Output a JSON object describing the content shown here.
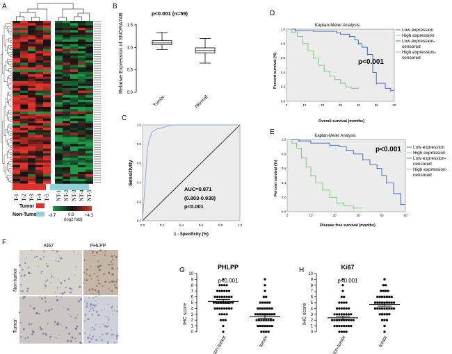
{
  "panels": {
    "A": "A",
    "B": "B",
    "C": "C",
    "D": "D",
    "E": "E",
    "F": "F",
    "G": "G",
    "H": "H"
  },
  "colors": {
    "red": "#e0322b",
    "green": "#1f9a48",
    "dark": "#111111",
    "cyan": "#8fd3d8",
    "blue": "#3a5fc0",
    "lightgreen": "#7cc47a",
    "km_bg": "#ececec",
    "roc_line": "#8ba9d6"
  },
  "heatmap": {
    "sample_labels": [
      "T-1",
      "T-2",
      "T-3",
      "T-4",
      "T-5",
      "NT-1",
      "NT-2",
      "NT-3",
      "NT-4",
      "NT-5"
    ],
    "legend_tumor": "Tumor",
    "legend_nontumor": "Non-Tumor",
    "scale_min": "-3.7",
    "scale_mid": "0.0",
    "scale_max": "+4.3",
    "scale_label": "(log2 fold)"
  },
  "box": {
    "title": "p<0.001 (n=59)",
    "ylabel": "Relative Expression of SNORA74B",
    "yticks": [
      "1.5",
      "1.0",
      "0.5",
      "0.0"
    ],
    "categories": [
      "Tumor",
      "Normal"
    ]
  },
  "roc": {
    "ylabel": "Sensitivity",
    "xlabel": "1 - Specificity (%)",
    "ticks": [
      "0.0",
      "0.2",
      "0.4",
      "0.6",
      "0.8",
      "1.0"
    ],
    "auc": "AUC=0.871",
    "ci": "(0.803-0.939)",
    "p": "p<0.001"
  },
  "km_d": {
    "title": "Kaplan-Meier Analysis",
    "ylabel": "Percent survival (%)",
    "xlabel": "Overall survival (months)",
    "p": "p<0.001",
    "xticks": [
      "0",
      "10",
      "20",
      "30",
      "40",
      "50",
      "60"
    ],
    "yticks": [
      "1.0",
      "0.8",
      "0.6",
      "0.4",
      "0.2",
      "0.0"
    ],
    "legend": [
      "Low expression",
      "High expression",
      "Low expression-",
      "censored",
      "High expression-",
      "censored"
    ]
  },
  "km_e": {
    "title": "Kaplan-Meier Analysis",
    "ylabel": "Percent survival (%)",
    "xlabel": "Disease free survival (months)",
    "p": "p<0.001",
    "xticks": [
      "0",
      "10",
      "20",
      "30",
      "40",
      "50"
    ],
    "yticks": [
      "1.0",
      "0.8",
      "0.6",
      "0.4",
      "0.2",
      "0.0"
    ],
    "legend": [
      "Low expression",
      "High expression",
      "Low expression-",
      "censored",
      "High expression-",
      "censored"
    ]
  },
  "ihc": {
    "col1": "Ki67",
    "col2": "PHLPP",
    "row1": "Non-tumor",
    "row2": "Tumor"
  },
  "scatter_g": {
    "title": "PHLPP",
    "p": "p<0.001",
    "ylabel": "IHC score",
    "yticks": [
      "10",
      "9",
      "8",
      "7",
      "6",
      "5",
      "4",
      "3",
      "2",
      "1",
      "0"
    ],
    "categories": [
      "non-tumor",
      "tumor"
    ]
  },
  "scatter_h": {
    "title": "Ki67",
    "p": "p<0.001",
    "ylabel": "IHC score",
    "yticks": [
      "10",
      "9",
      "8",
      "7",
      "6",
      "5",
      "4",
      "3",
      "2",
      "1",
      "0"
    ],
    "categories": [
      "non-tumor",
      "tumor"
    ]
  },
  "chart_data": [
    {
      "type": "heatmap",
      "title": "",
      "rows": 70,
      "columns": [
        "T-1",
        "T-2",
        "T-3",
        "T-4",
        "T-5",
        "NT-1",
        "NT-2",
        "NT-3",
        "NT-4",
        "NT-5"
      ],
      "scale": [
        -3.7,
        0.0,
        4.3
      ],
      "scale_label": "(log2 fold)"
    },
    {
      "type": "box",
      "title": "p<0.001 (n=59)",
      "categories": [
        "Tumor",
        "Normal"
      ],
      "whisker_low": [
        0.95,
        0.65
      ],
      "q1": [
        1.06,
        0.88
      ],
      "median": [
        1.1,
        0.93
      ],
      "q3": [
        1.15,
        0.99
      ],
      "whisker_high": [
        1.33,
        1.2
      ],
      "ylim": [
        0.0,
        1.5
      ],
      "ylabel": "Relative Expression of SNORA74B"
    },
    {
      "type": "line",
      "title": "ROC",
      "x": [
        0.0,
        0.02,
        0.04,
        0.05,
        0.07,
        0.1,
        0.15,
        0.2,
        0.3,
        0.5,
        1.0
      ],
      "y": [
        0.0,
        0.3,
        0.6,
        0.75,
        0.85,
        0.93,
        0.96,
        0.97,
        1.0,
        1.0,
        1.0
      ],
      "auc": 0.871,
      "xlabel": "1 - Specificity (%)",
      "ylabel": "Sensitivity",
      "xlim": [
        0,
        1
      ],
      "ylim": [
        0,
        1
      ]
    },
    {
      "type": "line",
      "title": "Kaplan-Meier Analysis",
      "xlabel": "Overall survival (months)",
      "ylabel": "Percent survival (%)",
      "xlim": [
        0,
        60
      ],
      "ylim": [
        0,
        1
      ],
      "series": [
        {
          "name": "Low expression",
          "x": [
            0,
            5,
            15,
            28,
            30,
            35,
            38,
            40,
            42,
            45,
            48,
            50,
            55,
            58,
            60
          ],
          "y": [
            1.0,
            0.98,
            0.97,
            0.95,
            0.93,
            0.9,
            0.85,
            0.8,
            0.75,
            0.65,
            0.4,
            0.25,
            0.18,
            0.15,
            0.15
          ]
        },
        {
          "name": "High expression",
          "x": [
            0,
            3,
            6,
            9,
            12,
            15,
            18,
            21,
            24,
            27,
            30,
            33,
            36,
            40
          ],
          "y": [
            1.0,
            0.96,
            0.9,
            0.8,
            0.7,
            0.6,
            0.5,
            0.42,
            0.35,
            0.3,
            0.25,
            0.2,
            0.18,
            0.18
          ]
        }
      ]
    },
    {
      "type": "line",
      "title": "Kaplan-Meier Analysis",
      "xlabel": "Disease free survival (months)",
      "ylabel": "Percent survival (%)",
      "xlim": [
        0,
        50
      ],
      "ylim": [
        0,
        1
      ],
      "series": [
        {
          "name": "Low expression",
          "x": [
            0,
            5,
            10,
            18,
            22,
            25,
            28,
            32,
            35,
            38,
            40,
            42,
            45,
            48,
            50
          ],
          "y": [
            1.0,
            0.98,
            0.95,
            0.92,
            0.9,
            0.85,
            0.8,
            0.72,
            0.65,
            0.6,
            0.5,
            0.4,
            0.25,
            0.1,
            0.1
          ]
        },
        {
          "name": "High expression",
          "x": [
            0,
            2,
            4,
            6,
            8,
            10,
            12,
            15,
            18,
            21,
            24,
            28,
            32
          ],
          "y": [
            1.0,
            0.95,
            0.88,
            0.75,
            0.62,
            0.5,
            0.4,
            0.3,
            0.2,
            0.12,
            0.08,
            0.05,
            0.05
          ]
        }
      ]
    },
    {
      "type": "scatter",
      "title": "PHLPP",
      "categories": [
        "non-tumor",
        "tumor"
      ],
      "ylim": [
        0,
        10
      ],
      "ylabel": "IHC score",
      "mean": [
        5.2,
        2.6
      ],
      "sem": [
        0.35,
        0.3
      ]
    },
    {
      "type": "scatter",
      "title": "Ki67",
      "categories": [
        "non-tumor",
        "tumor"
      ],
      "ylim": [
        0,
        10
      ],
      "ylabel": "IHC score",
      "mean": [
        2.4,
        4.7
      ],
      "sem": [
        0.3,
        0.3
      ]
    }
  ]
}
